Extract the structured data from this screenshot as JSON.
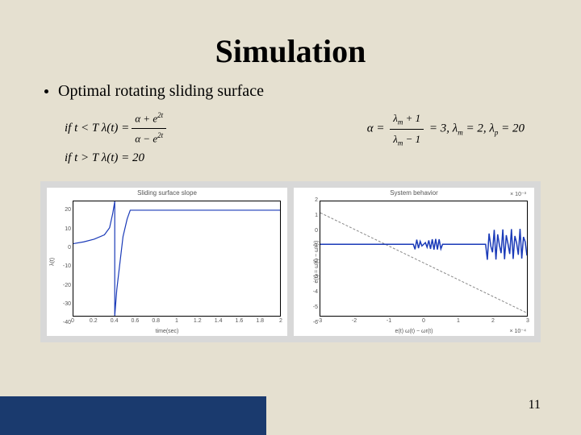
{
  "title": "Simulation",
  "bullet": "Optimal rotating sliding surface",
  "equations": {
    "left_line1_prefix": "if t < T  λ(t) = ",
    "left_frac_num": "α + e",
    "left_frac_num_exp": "2t",
    "left_frac_den": "α − e",
    "left_frac_den_exp": "2t",
    "left_line2": "if t > T  λ(t) = 20",
    "right": "α = ",
    "right_frac_num": "λ",
    "right_frac_num_sub": "m",
    "right_frac_num_suffix": " + 1",
    "right_frac_den": "λ",
    "right_frac_den_sub": "m",
    "right_frac_den_suffix": " − 1",
    "right_suffix1": " = 3,  λ",
    "right_sub_m": "m",
    "right_suffix2": " = 2,  λ",
    "right_sub_p": "p",
    "right_suffix3": " = 20"
  },
  "chart1": {
    "type": "line",
    "title": "Sliding surface slope",
    "xlabel": "time(sec)",
    "ylabel": "λ(t)",
    "xlim": [
      0,
      2
    ],
    "ylim": [
      -40,
      25
    ],
    "xticks": [
      0,
      0.2,
      0.4,
      0.6,
      0.8,
      1,
      1.2,
      1.4,
      1.6,
      1.8,
      2
    ],
    "yticks": [
      -40,
      -30,
      -20,
      -10,
      0,
      10,
      20
    ],
    "line_color": "#1a3ab8",
    "line_width": 1.2,
    "points": [
      [
        0,
        1
      ],
      [
        0.1,
        2
      ],
      [
        0.2,
        3.5
      ],
      [
        0.3,
        6
      ],
      [
        0.35,
        10
      ],
      [
        0.38,
        18
      ],
      [
        0.4,
        25
      ],
      [
        0.4,
        -40
      ],
      [
        0.42,
        -25
      ],
      [
        0.48,
        5
      ],
      [
        0.52,
        15
      ],
      [
        0.55,
        20
      ],
      [
        0.6,
        20
      ],
      [
        2,
        20
      ]
    ]
  },
  "chart2": {
    "type": "line",
    "title": "System behavior",
    "xlabel": "e(t)   ω(t) − ωr(t)",
    "ylabel": "ė(t) = ω̇(t) − ω̇r(t)",
    "xlim": [
      -3,
      3
    ],
    "ylim": [
      -6,
      2
    ],
    "xticks": [
      -3,
      -2,
      -1,
      0,
      1,
      2,
      3
    ],
    "yticks": [
      -6,
      -5,
      -4,
      -3,
      -2,
      -1,
      0,
      1,
      2
    ],
    "top_exp": "× 10⁻³",
    "bottom_exp": "× 10⁻⁴",
    "dash_color": "#888888",
    "dash_points": [
      [
        -3,
        1.2
      ],
      [
        3,
        -5.8
      ]
    ],
    "solid_color": "#1a3ab8",
    "solid_width": 1.5
  },
  "page_number": "11",
  "colors": {
    "slide_bg": "#e5e0d0",
    "footer_bar": "#1a3a6e",
    "chart_container_bg": "#d8d8d8",
    "chart_bg": "#ffffff"
  }
}
